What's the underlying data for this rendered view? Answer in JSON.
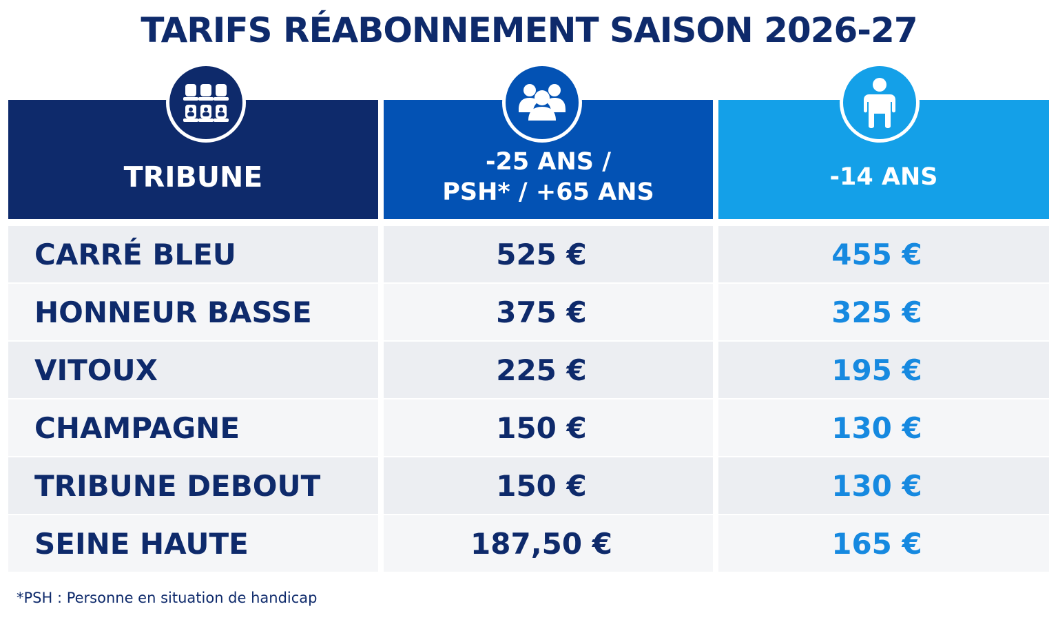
{
  "chart_data": {
    "type": "table",
    "title": "TARIFS RÉABONNEMENT SAISON 2026-27",
    "columns": [
      {
        "label": "TRIBUNE",
        "label_lines": [
          "TRIBUNE"
        ],
        "icon": "stadium-seats-icon"
      },
      {
        "label": "-25 ANS / PSH* / +65 ANS",
        "label_lines": [
          "-25 ANS /",
          "PSH* / +65 ANS"
        ],
        "icon": "group-people-icon"
      },
      {
        "label": "-14 ANS",
        "label_lines": [
          "-14 ANS"
        ],
        "icon": "child-icon"
      }
    ],
    "rows": [
      {
        "tribune": "CARRÉ BLEU",
        "tarif_reduit": "525 €",
        "tarif_moins_14": "455 €"
      },
      {
        "tribune": "HONNEUR BASSE",
        "tarif_reduit": "375 €",
        "tarif_moins_14": "325 €"
      },
      {
        "tribune": "VITOUX",
        "tarif_reduit": "225 €",
        "tarif_moins_14": "195 €"
      },
      {
        "tribune": "CHAMPAGNE",
        "tarif_reduit": "150 €",
        "tarif_moins_14": "130 €"
      },
      {
        "tribune": "TRIBUNE DEBOUT",
        "tarif_reduit": "150 €",
        "tarif_moins_14": "130 €"
      },
      {
        "tribune": "SEINE HAUTE",
        "tarif_reduit": "187,50 €",
        "tarif_moins_14": "165 €"
      }
    ],
    "values_eur": {
      "tarif_reduit": [
        525,
        375,
        225,
        150,
        150,
        187.5
      ],
      "tarif_moins_14": [
        455,
        325,
        195,
        130,
        130,
        165
      ]
    },
    "footnote": "*PSH : Personne en situation de handicap",
    "colors": {
      "navy": "#0e2a6b",
      "royal_blue": "#0352b4",
      "sky_blue": "#14a0e8",
      "price_blue": "#1689e0"
    }
  }
}
